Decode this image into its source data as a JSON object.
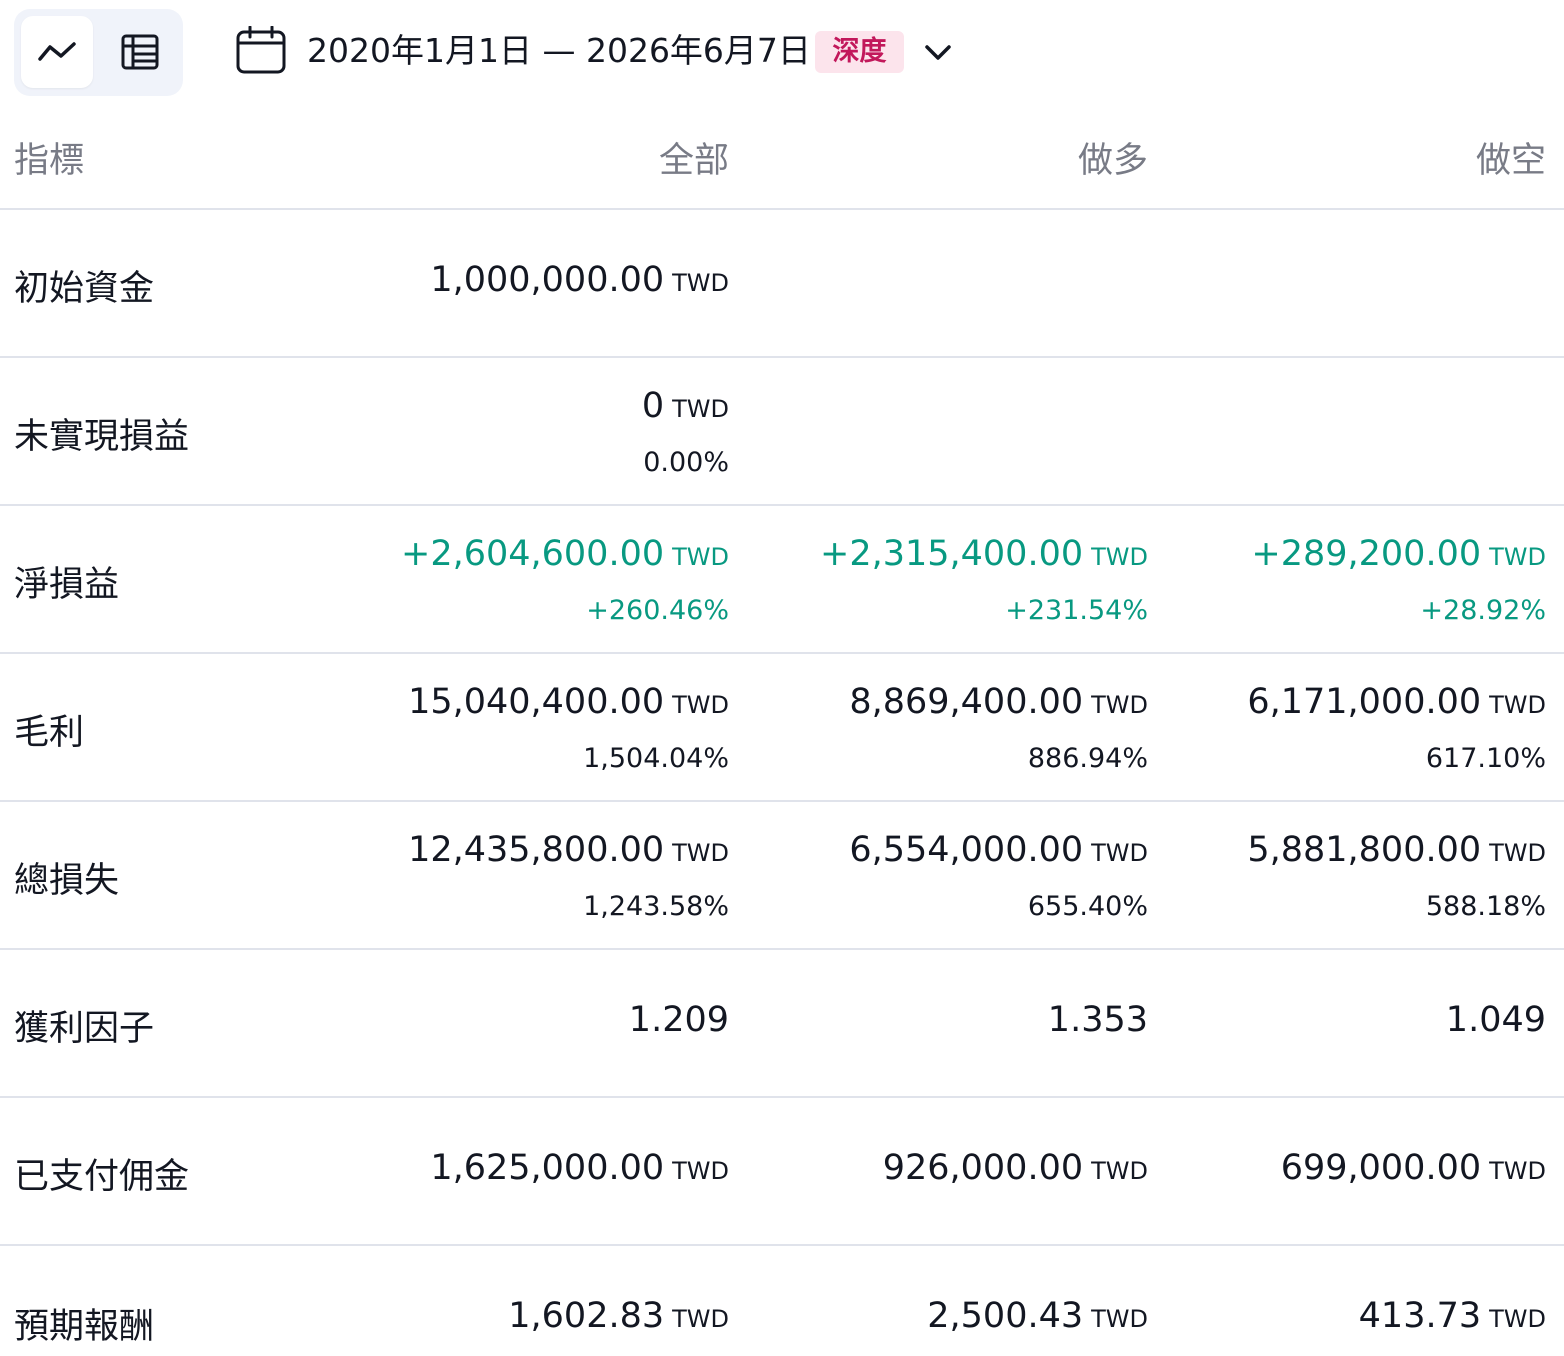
{
  "toolbar": {
    "date_range": "2020年1月1日 — 2026年6月7日",
    "badge": "深度",
    "icons": {
      "chart_view": "chart-line-icon",
      "table_view": "table-icon",
      "calendar": "calendar-icon",
      "dropdown": "chevron-down-icon"
    }
  },
  "colors": {
    "positive": "#089981",
    "badge_bg": "#fce4ec",
    "badge_text": "#c2185b",
    "header_text": "#787b86"
  },
  "table": {
    "headers": {
      "metric": "指標",
      "all": "全部",
      "long": "做多",
      "short": "做空"
    },
    "rows": [
      {
        "label": "初始資金",
        "all": {
          "value": "1,000,000.00",
          "unit": "TWD"
        }
      },
      {
        "label": "未實現損益",
        "all": {
          "value": "0",
          "unit": "TWD",
          "pct": "0.00%"
        }
      },
      {
        "label": "淨損益",
        "all": {
          "value": "+2,604,600.00",
          "unit": "TWD",
          "pct": "+260.46%"
        },
        "long": {
          "value": "+2,315,400.00",
          "unit": "TWD",
          "pct": "+231.54%"
        },
        "short": {
          "value": "+289,200.00",
          "unit": "TWD",
          "pct": "+28.92%"
        }
      },
      {
        "label": "毛利",
        "all": {
          "value": "15,040,400.00",
          "unit": "TWD",
          "pct": "1,504.04%"
        },
        "long": {
          "value": "8,869,400.00",
          "unit": "TWD",
          "pct": "886.94%"
        },
        "short": {
          "value": "6,171,000.00",
          "unit": "TWD",
          "pct": "617.10%"
        }
      },
      {
        "label": "總損失",
        "all": {
          "value": "12,435,800.00",
          "unit": "TWD",
          "pct": "1,243.58%"
        },
        "long": {
          "value": "6,554,000.00",
          "unit": "TWD",
          "pct": "655.40%"
        },
        "short": {
          "value": "5,881,800.00",
          "unit": "TWD",
          "pct": "588.18%"
        }
      },
      {
        "label": "獲利因子",
        "all": {
          "value": "1.209"
        },
        "long": {
          "value": "1.353"
        },
        "short": {
          "value": "1.049"
        }
      },
      {
        "label": "已支付佣金",
        "all": {
          "value": "1,625,000.00",
          "unit": "TWD"
        },
        "long": {
          "value": "926,000.00",
          "unit": "TWD"
        },
        "short": {
          "value": "699,000.00",
          "unit": "TWD"
        }
      },
      {
        "label": "預期報酬",
        "all": {
          "value": "1,602.83",
          "unit": "TWD"
        },
        "long": {
          "value": "2,500.43",
          "unit": "TWD"
        },
        "short": {
          "value": "413.73",
          "unit": "TWD"
        }
      }
    ]
  }
}
